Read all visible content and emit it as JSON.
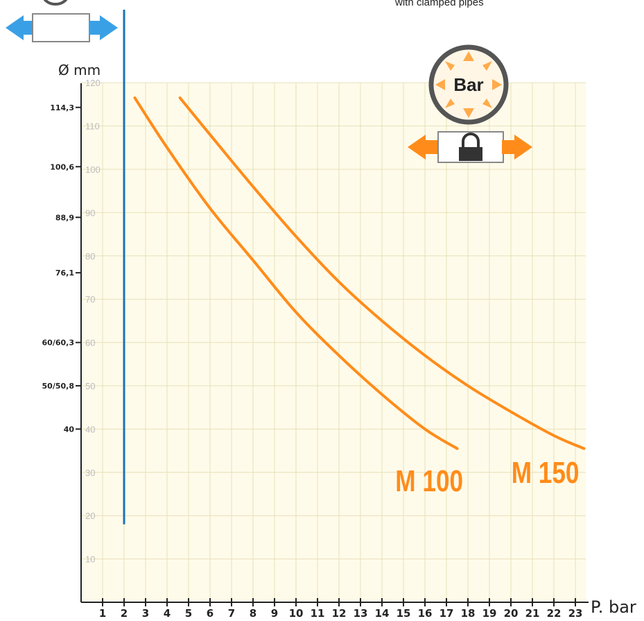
{
  "header_note": "with clamped pipes",
  "badge": {
    "label": "Bar"
  },
  "colors": {
    "background": "#fffbea",
    "grid": "#e6e0b8",
    "axis": "#222222",
    "curve": "#ff8c1a",
    "blue_line": "#1a73b8",
    "arrow": "#3aa0e6",
    "badge_ring": "#555555"
  },
  "icons": {
    "left_symbol": "double-arrow-pipe-icon",
    "badge": "pressure-badge-icon",
    "lock": "clamped-lock-pipe-icon"
  },
  "chart_data": {
    "type": "line",
    "xlabel": "P. bar",
    "ylabel": "Ø mm",
    "xlim": [
      0,
      23.5
    ],
    "ylim": [
      0,
      120
    ],
    "x_ticks": [
      1,
      2,
      3,
      4,
      5,
      6,
      7,
      8,
      9,
      10,
      11,
      12,
      13,
      14,
      15,
      16,
      17,
      18,
      19,
      20,
      21,
      22,
      23
    ],
    "y_inner_ticks": [
      10,
      20,
      30,
      40,
      50,
      60,
      70,
      80,
      90,
      100,
      110,
      120
    ],
    "y_outer_ticks": [
      {
        "label": "114,3",
        "value": 114.3
      },
      {
        "label": "100,6",
        "value": 100.6
      },
      {
        "label": "88,9",
        "value": 88.9
      },
      {
        "label": "76,1",
        "value": 76.1
      },
      {
        "label": "60/60,3",
        "value": 60
      },
      {
        "label": "50/50,8",
        "value": 50
      },
      {
        "label": "40",
        "value": 40
      }
    ],
    "reference_line": {
      "x": 2,
      "y_range": [
        18,
        120
      ]
    },
    "series": [
      {
        "name": "M 100",
        "x": [
          2.5,
          4,
          6,
          8,
          10,
          12,
          14,
          16,
          17.5
        ],
        "y": [
          116.5,
          105,
          91,
          79,
          67,
          57,
          48,
          40,
          35.5
        ]
      },
      {
        "name": "M 150",
        "x": [
          4.6,
          6,
          8,
          10,
          12,
          14,
          16,
          18,
          20,
          22,
          23.4
        ],
        "y": [
          116.5,
          108,
          96,
          84.5,
          74,
          65,
          57,
          50,
          44,
          38.5,
          35.5
        ]
      }
    ],
    "grid": true
  }
}
